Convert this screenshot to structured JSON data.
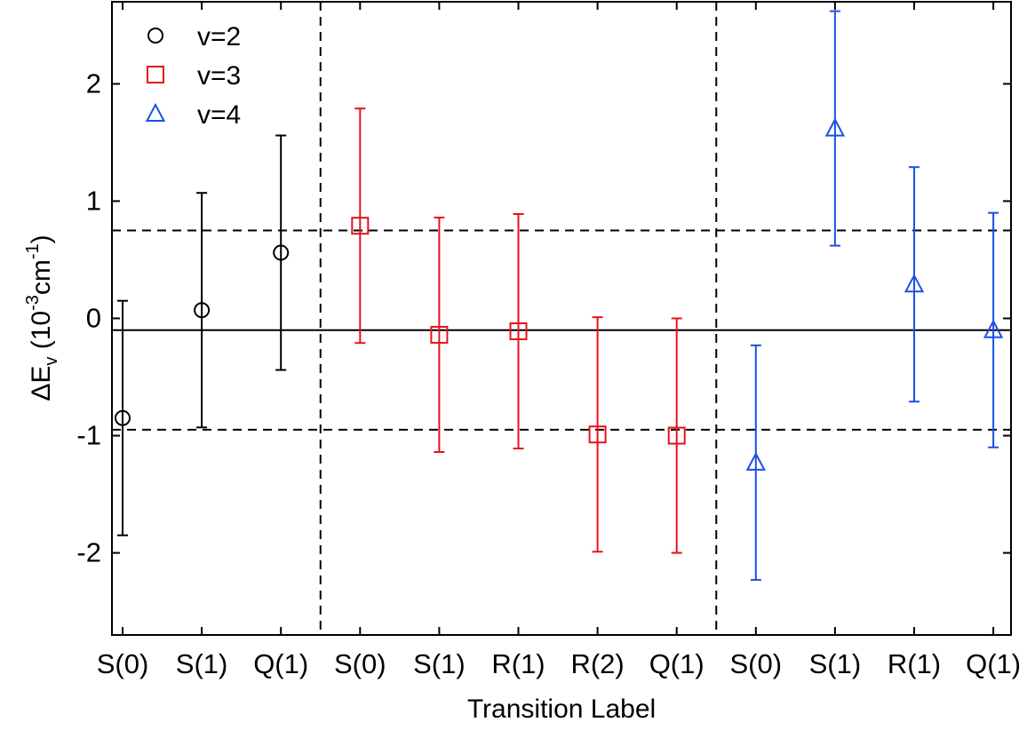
{
  "chart_data": {
    "type": "scatter",
    "title": "",
    "xlabel": "Transition Label",
    "ylabel": {
      "main": "ΔE",
      "sub": "v",
      "open": "(10",
      "exp1": "-3",
      "unit": "cm",
      "exp2": "-1",
      "close": ")"
    },
    "categories": [
      "S(0)",
      "S(1)",
      "Q(1)",
      "S(0)",
      "S(1)",
      "R(1)",
      "R(2)",
      "Q(1)",
      "S(0)",
      "S(1)",
      "R(1)",
      "Q(1)"
    ],
    "ylim": [
      -2.7,
      2.7
    ],
    "yticks": [
      -2,
      -1,
      0,
      1,
      2
    ],
    "ytick_labels": [
      "-2",
      "-1",
      "0",
      "1",
      "2"
    ],
    "grid": false,
    "legend_position": "top-left",
    "group_separators_after_index": [
      2,
      7
    ],
    "reference_lines": [
      {
        "y": -0.1,
        "style": "solid"
      },
      {
        "y": 0.75,
        "style": "dashed"
      },
      {
        "y": -0.95,
        "style": "dashed"
      }
    ],
    "series": [
      {
        "name": "v=2",
        "marker": "circle",
        "color": "#000000",
        "x": [
          0,
          1,
          2
        ],
        "y": [
          -0.85,
          0.07,
          0.56
        ],
        "err_low": [
          -1.85,
          -0.93,
          -0.44
        ],
        "err_high": [
          0.15,
          1.07,
          1.56
        ]
      },
      {
        "name": "v=3",
        "marker": "square",
        "color": "#e8111b",
        "x": [
          3,
          4,
          5,
          6,
          7
        ],
        "y": [
          0.79,
          -0.14,
          -0.11,
          -0.99,
          -1.0
        ],
        "err_low": [
          -0.21,
          -1.14,
          -1.11,
          -1.99,
          -2.0
        ],
        "err_high": [
          1.79,
          0.86,
          0.89,
          0.01,
          0.0
        ]
      },
      {
        "name": "v=4",
        "marker": "triangle",
        "color": "#1a4fe8",
        "x": [
          8,
          9,
          10,
          11
        ],
        "y": [
          -1.23,
          1.62,
          0.29,
          -0.1
        ],
        "err_low": [
          -2.23,
          0.62,
          -0.71,
          -1.1
        ],
        "err_high": [
          -0.23,
          2.62,
          1.29,
          0.9
        ]
      }
    ]
  }
}
